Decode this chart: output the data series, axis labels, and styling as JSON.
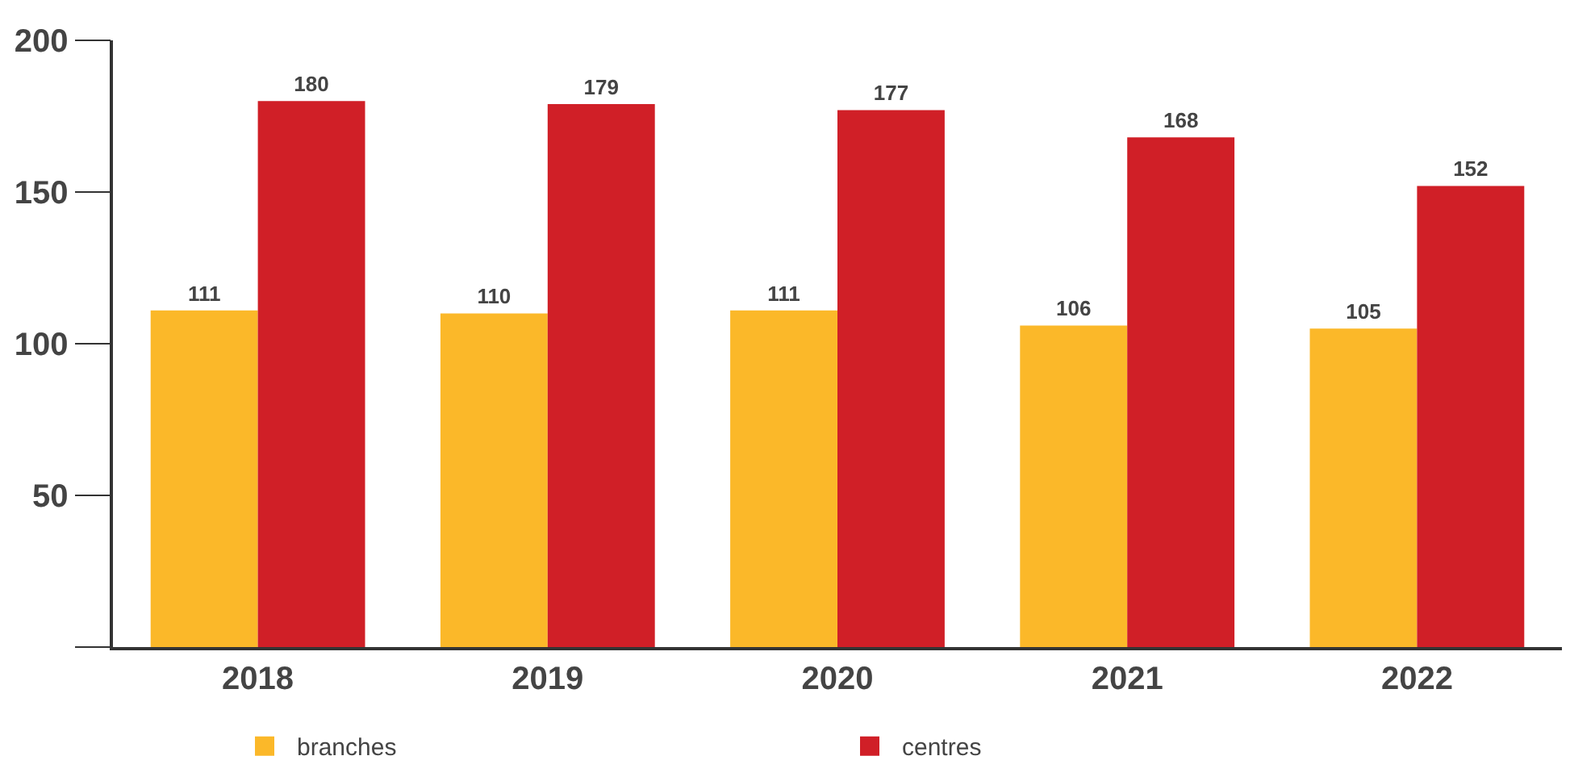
{
  "chart_data": {
    "type": "bar",
    "categories": [
      "2018",
      "2019",
      "2020",
      "2021",
      "2022"
    ],
    "series": [
      {
        "name": "branches",
        "color": "#fbb829",
        "values": [
          111,
          110,
          111,
          106,
          105
        ]
      },
      {
        "name": "centres",
        "color": "#d01f27",
        "values": [
          180,
          179,
          177,
          168,
          152
        ]
      }
    ],
    "ylim": [
      0,
      200
    ],
    "yticks": [
      {
        "value": 0,
        "label": null
      },
      50,
      100,
      150,
      200
    ],
    "data_labels": true,
    "legend": "bottom"
  }
}
